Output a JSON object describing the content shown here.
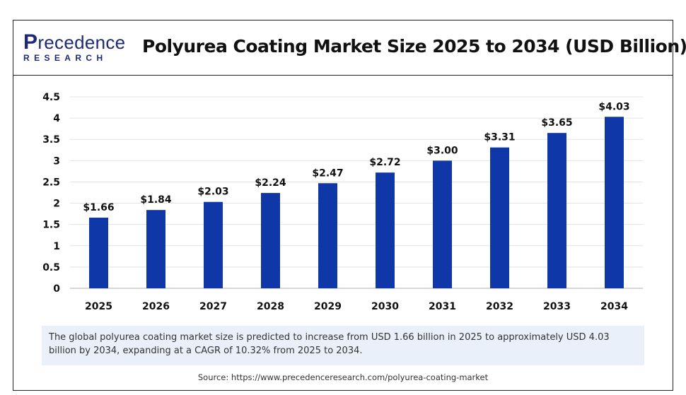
{
  "brand": {
    "name_top": "recedence",
    "name_initial": "P",
    "name_bottom": "RESEARCH"
  },
  "header": {
    "title": "Polyurea Coating Market Size 2025 to 2034 (USD Billion)"
  },
  "chart_data": {
    "type": "bar",
    "categories": [
      "2025",
      "2026",
      "2027",
      "2028",
      "2029",
      "2030",
      "2031",
      "2032",
      "2033",
      "2034"
    ],
    "values": [
      1.66,
      1.84,
      2.03,
      2.24,
      2.47,
      2.72,
      3.0,
      3.31,
      3.65,
      4.03
    ],
    "data_labels": [
      "$1.66",
      "$1.84",
      "$2.03",
      "$2.24",
      "$2.47",
      "$2.72",
      "$3.00",
      "$3.31",
      "$3.65",
      "$4.03"
    ],
    "y_ticks": [
      "0",
      "0.5",
      "1",
      "1.5",
      "2",
      "2.5",
      "3",
      "3.5",
      "4",
      "4.5"
    ],
    "ylim": [
      0,
      4.5
    ],
    "bar_color": "#0f37a8",
    "grid": true,
    "title": "Polyurea Coating Market Size 2025 to 2034 (USD Billion)",
    "xlabel": "",
    "ylabel": ""
  },
  "note": "The global polyurea coating market size is predicted to increase from USD 1.66 billion in 2025 to approximately USD 4.03 billion by 2034, expanding at a CAGR of 10.32% from 2025 to 2034.",
  "source": "Source: https://www.precedenceresearch.com/polyurea-coating-market"
}
